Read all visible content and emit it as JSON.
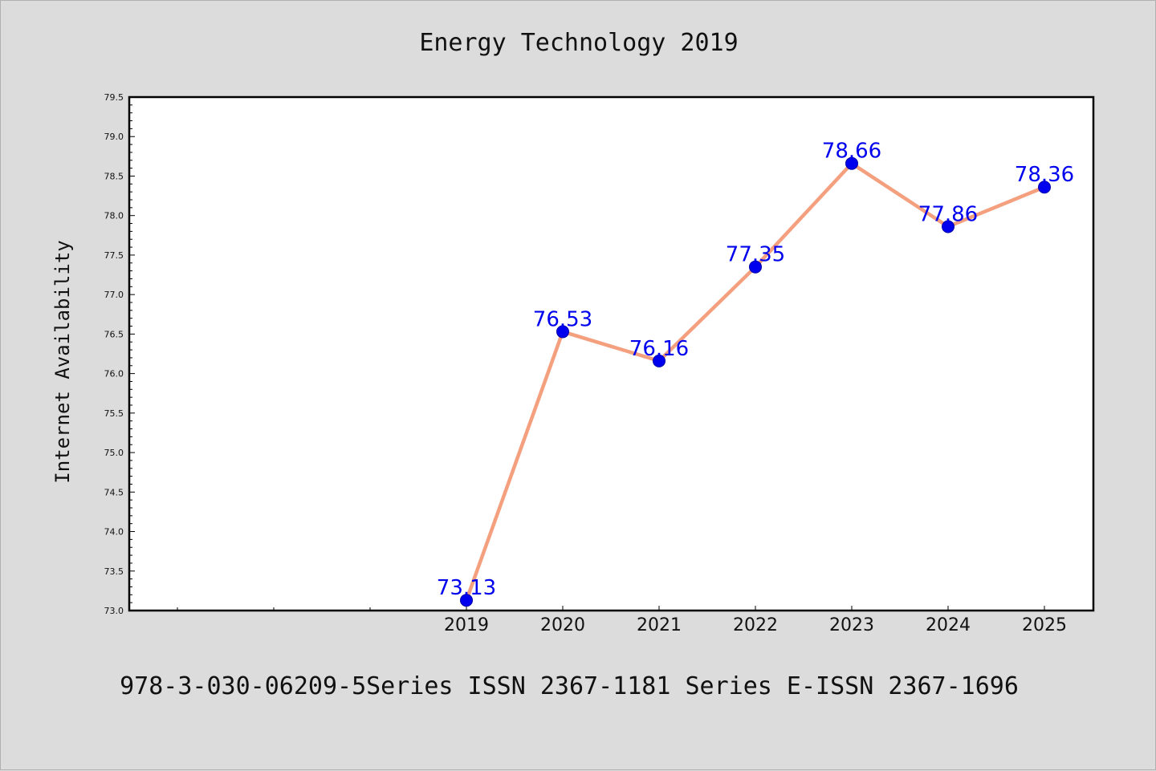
{
  "chart_data": {
    "type": "line",
    "title": "Energy Technology 2019",
    "ylabel": "Internet Availability",
    "xlabel": "",
    "x": [
      "2019",
      "2020",
      "2021",
      "2022",
      "2023",
      "2024",
      "2025"
    ],
    "values": [
      73.13,
      76.53,
      76.16,
      77.35,
      78.66,
      77.86,
      78.36
    ],
    "data_labels": [
      "73.13",
      "76.53",
      "76.16",
      "77.35",
      "78.66",
      "77.86",
      "78.36"
    ],
    "ylim": [
      73.0,
      79.5
    ],
    "yticks": [
      "73.0",
      "73.5",
      "74.0",
      "74.5",
      "75.0",
      "75.5",
      "76.0",
      "76.5",
      "77.0",
      "77.5",
      "78.0",
      "78.5",
      "79.0",
      "79.5"
    ],
    "grid": false,
    "legend": "none",
    "line_color": "#f4a07f",
    "marker_color": "#0000ee",
    "label_color": "#0000ee"
  },
  "footer": {
    "text": "978-3-030-06209-5Series ISSN 2367-1181 Series E-ISSN 2367-1696"
  }
}
